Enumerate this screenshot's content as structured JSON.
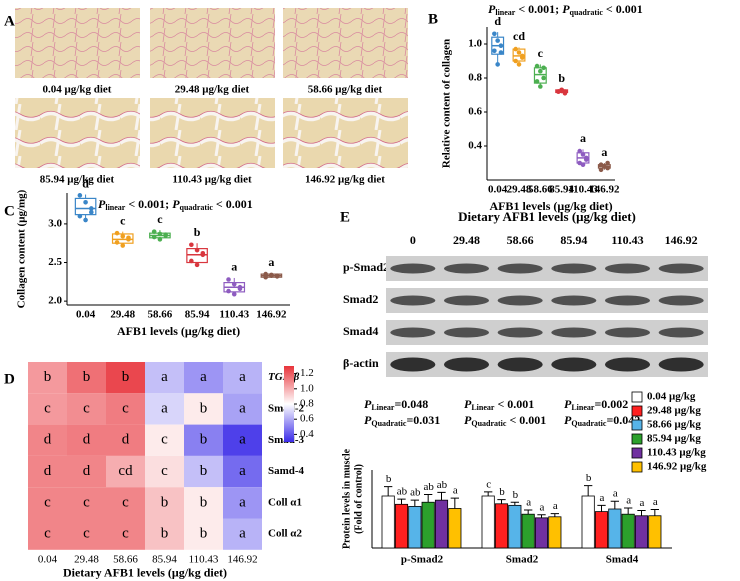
{
  "panel_a": {
    "label": "A",
    "images": [
      "0.04 μg/kg diet",
      "29.48 μg/kg diet",
      "58.66 μg/kg diet",
      "85.94 μg/kg diet",
      "110.43 μg/kg diet",
      "146.92 μg/kg diet"
    ]
  },
  "chart_data": [
    {
      "type": "box",
      "panel": "B",
      "p_values": [
        {
          "symbol": "P",
          "sub": "linear",
          "text": " < 0.001;  "
        },
        {
          "symbol": "P",
          "sub": "quadratic",
          "text": " < 0.001"
        }
      ],
      "ylabel": "Relative content of collagen",
      "xlabel": "AFB1 levels (μg/kg diet)",
      "categories": [
        "0.04",
        "29.48",
        "58.66",
        "85.94",
        "110.43",
        "146.92"
      ],
      "ylim": [
        0.2,
        1.1
      ],
      "yticks": [
        0.4,
        0.6,
        0.8,
        {
          "value": 1,
          "label": "1.0"
        }
      ],
      "boxes": [
        {
          "color": "#3a86c8",
          "min": 0.88,
          "q1": 0.94,
          "median": 0.99,
          "q3": 1.04,
          "max": 1.07,
          "points": [
            1.06,
            1.02,
            0.99,
            0.96,
            0.88,
            0.95
          ],
          "letter": "d"
        },
        {
          "color": "#f0a020",
          "min": 0.87,
          "q1": 0.9,
          "median": 0.93,
          "q3": 0.97,
          "max": 0.98,
          "points": [
            0.97,
            0.95,
            0.92,
            0.9,
            0.88,
            0.93
          ],
          "letter": "cd"
        },
        {
          "color": "#4caf50",
          "min": 0.74,
          "q1": 0.77,
          "median": 0.82,
          "q3": 0.86,
          "max": 0.88,
          "points": [
            0.87,
            0.84,
            0.8,
            0.78,
            0.75,
            0.86
          ],
          "letter": "c"
        },
        {
          "color": "#d9363e",
          "min": 0.71,
          "q1": 0.715,
          "median": 0.72,
          "q3": 0.73,
          "max": 0.735,
          "points": [
            0.72,
            0.73,
            0.71,
            0.72,
            0.73,
            0.72
          ],
          "letter": "b"
        },
        {
          "color": "#8e5cc0",
          "min": 0.28,
          "q1": 0.3,
          "median": 0.33,
          "q3": 0.36,
          "max": 0.38,
          "points": [
            0.37,
            0.35,
            0.32,
            0.3,
            0.29,
            0.33
          ],
          "letter": "a"
        },
        {
          "color": "#8b5a4a",
          "min": 0.26,
          "q1": 0.27,
          "median": 0.28,
          "q3": 0.29,
          "max": 0.3,
          "points": [
            0.29,
            0.28,
            0.27,
            0.26,
            0.28,
            0.3
          ],
          "letter": "a"
        }
      ]
    },
    {
      "type": "box",
      "panel": "C",
      "p_values": [
        {
          "symbol": "P",
          "sub": "linear",
          "text": " < 0.001;  "
        },
        {
          "symbol": "P",
          "sub": "quadratic",
          "text": " < 0.001"
        }
      ],
      "ylabel": "Collagen content (μg/mg)",
      "xlabel": "AFB1 levels (μg/kg diet)",
      "categories": [
        "0.04",
        "29.48",
        "58.66",
        "85.94",
        "110.43",
        "146.92"
      ],
      "ylim": [
        1.95,
        3.4
      ],
      "yticks": [
        {
          "value": 2,
          "label": "2.0"
        },
        {
          "value": 2.5,
          "label": "2.5"
        },
        {
          "value": 3,
          "label": "3.0"
        }
      ],
      "boxes": [
        {
          "color": "#3a86c8",
          "min": 3.05,
          "q1": 3.12,
          "median": 3.2,
          "q3": 3.33,
          "max": 3.38,
          "points": [
            3.37,
            3.28,
            3.2,
            3.1,
            3.05,
            3.15
          ],
          "letter": "d"
        },
        {
          "color": "#f0a020",
          "min": 2.7,
          "q1": 2.75,
          "median": 2.8,
          "q3": 2.87,
          "max": 2.9,
          "points": [
            2.88,
            2.84,
            2.8,
            2.76,
            2.72,
            2.82
          ],
          "letter": "c"
        },
        {
          "color": "#4caf50",
          "min": 2.78,
          "q1": 2.82,
          "median": 2.85,
          "q3": 2.88,
          "max": 2.92,
          "points": [
            2.9,
            2.87,
            2.85,
            2.83,
            2.8,
            2.86
          ],
          "letter": "c"
        },
        {
          "color": "#d9363e",
          "min": 2.45,
          "q1": 2.5,
          "median": 2.6,
          "q3": 2.68,
          "max": 2.75,
          "points": [
            2.73,
            2.66,
            2.6,
            2.52,
            2.47,
            2.62
          ],
          "letter": "b"
        },
        {
          "color": "#8e5cc0",
          "min": 2.08,
          "q1": 2.12,
          "median": 2.18,
          "q3": 2.24,
          "max": 2.3,
          "points": [
            2.28,
            2.22,
            2.18,
            2.13,
            2.09,
            2.16
          ],
          "letter": "a"
        },
        {
          "color": "#8b5a4a",
          "min": 2.3,
          "q1": 2.31,
          "median": 2.33,
          "q3": 2.35,
          "max": 2.36,
          "points": [
            2.35,
            2.33,
            2.32,
            2.31,
            2.34,
            2.33
          ],
          "letter": "a"
        }
      ]
    },
    {
      "type": "heatmap",
      "panel": "D",
      "xlabel": "Dietary AFB1 levels (μg/kg diet)",
      "columns": [
        "0.04",
        "29.48",
        "58.66",
        "85.94",
        "110.43",
        "146.92"
      ],
      "rows": [
        "TGF-β",
        "Smad-2",
        "Smad-3",
        "Samd-4",
        "Coll α1",
        "Coll α2"
      ],
      "values": [
        [
          1.05,
          1.15,
          1.25,
          0.65,
          0.55,
          0.62
        ],
        [
          1.05,
          1.08,
          1.12,
          0.7,
          0.85,
          0.58
        ],
        [
          1.1,
          1.12,
          1.12,
          0.85,
          0.5,
          0.35
        ],
        [
          1.1,
          1.1,
          1.0,
          0.88,
          0.65,
          0.45
        ],
        [
          1.1,
          1.1,
          1.1,
          0.95,
          0.85,
          0.55
        ],
        [
          1.1,
          1.1,
          1.1,
          0.95,
          0.85,
          0.62
        ]
      ],
      "letters": [
        [
          "b",
          "b",
          "b",
          "a",
          "a",
          "a"
        ],
        [
          "c",
          "c",
          "c",
          "a",
          "b",
          "a"
        ],
        [
          "d",
          "d",
          "d",
          "c",
          "b",
          "a"
        ],
        [
          "d",
          "d",
          "cd",
          "c",
          "b",
          "a"
        ],
        [
          "c",
          "c",
          "c",
          "b",
          "b",
          "a"
        ],
        [
          "c",
          "c",
          "c",
          "b",
          "b",
          "a"
        ]
      ],
      "clim": [
        0.3,
        1.3
      ],
      "colormap": [
        "#3a2be8",
        "#ffffff",
        "#e8333a"
      ],
      "colorbar_ticks": [
        0.4,
        0.6,
        0.8,
        {
          "value": 1,
          "label": "1.0"
        },
        1.2
      ]
    },
    {
      "type": "bar",
      "panel": "E",
      "blot": {
        "title": "Dietary AFB1 levels (μg/kg diet)",
        "lanes": [
          "0",
          "29.48",
          "58.66",
          "85.94",
          "110.43",
          "146.92"
        ],
        "rows": [
          "p-Smad2",
          "Smad2",
          "Smad4",
          "β-actin"
        ]
      },
      "ylabel": [
        "Protein levels in muscle",
        "(Fold of control)"
      ],
      "categories": [
        "p-Smad2",
        "Smad2",
        "Smad4"
      ],
      "ylim": [
        0,
        1.5
      ],
      "p_values": [
        [
          {
            "symbol": "P",
            "sub": "Linear",
            "text": "=0.048"
          },
          {
            "symbol": "P",
            "sub": "Quadratic",
            "text": "=0.031"
          }
        ],
        [
          {
            "symbol": "P",
            "sub": "Linear",
            "text": " < 0.001"
          },
          {
            "symbol": "P",
            "sub": "Quadratic",
            "text": " < 0.001"
          }
        ],
        [
          {
            "symbol": "P",
            "sub": "Linear",
            "text": "=0.002"
          },
          {
            "symbol": "P",
            "sub": "Quadratic",
            "text": "=0.042"
          }
        ]
      ],
      "series": [
        {
          "name": "0.04 μg/kg",
          "color": "#ffffff",
          "values": [
            1.0,
            1.0,
            1.0
          ],
          "errors": [
            0.18,
            0.08,
            0.2
          ],
          "letters": [
            "b",
            "c",
            "b"
          ]
        },
        {
          "name": "29.48 μg/kg",
          "color": "#ff2020",
          "values": [
            0.84,
            0.85,
            0.7
          ],
          "errors": [
            0.1,
            0.08,
            0.12
          ],
          "letters": [
            "ab",
            "b",
            "a"
          ]
        },
        {
          "name": "58.66 μg/kg",
          "color": "#56b4e9",
          "values": [
            0.8,
            0.82,
            0.75
          ],
          "errors": [
            0.12,
            0.06,
            0.15
          ],
          "letters": [
            "ab",
            "b",
            "a"
          ]
        },
        {
          "name": "85.94 μg/kg",
          "color": "#2ca02c",
          "values": [
            0.88,
            0.65,
            0.65
          ],
          "errors": [
            0.15,
            0.08,
            0.12
          ],
          "letters": [
            "ab",
            "a",
            "a"
          ]
        },
        {
          "name": "110.43 μg/kg",
          "color": "#7030a0",
          "values": [
            0.92,
            0.58,
            0.62
          ],
          "errors": [
            0.15,
            0.06,
            0.1
          ],
          "letters": [
            "ab",
            "a",
            "a"
          ]
        },
        {
          "name": "146.92 μg/kg",
          "color": "#ffc000",
          "values": [
            0.76,
            0.6,
            0.62
          ],
          "errors": [
            0.2,
            0.06,
            0.12
          ],
          "letters": [
            "a",
            "a",
            "a"
          ]
        }
      ]
    }
  ]
}
